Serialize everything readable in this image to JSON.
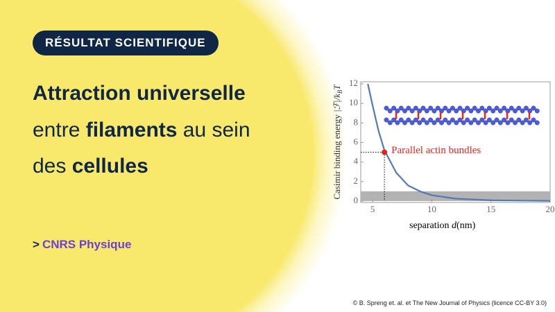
{
  "badge": "RÉSULTAT SCIENTIFIQUE",
  "headline": [
    [
      "Attraction universelle"
    ],
    [
      "entre",
      "filaments",
      "au sein"
    ],
    [
      "des",
      "cellules"
    ]
  ],
  "link": {
    "prefix": ">",
    "text": "CNRS Physique"
  },
  "credit": "© B. Spreng et. al. et The New Journal of Physics (licence CC-BY 3.0)",
  "chart_data": {
    "type": "line",
    "x_label": {
      "text": "separation",
      "symbol": "d",
      "unit": "(nm)"
    },
    "y_label": {
      "text": "Casimir binding energy",
      "math": "|ℱ|/k",
      "sub": "B",
      "tail": "T"
    },
    "x": [
      4.6,
      5,
      5.5,
      6,
      7,
      8,
      9,
      10,
      12,
      15,
      20
    ],
    "series": [
      {
        "color": "#5279b5",
        "values": [
          12,
          9.8,
          7.2,
          5.2,
          2.9,
          1.6,
          1.0,
          0.6,
          0.25,
          0.08,
          0.02
        ]
      }
    ],
    "xlim": [
      4,
      20
    ],
    "ylim": [
      0,
      12
    ],
    "xticks": [
      5,
      10,
      15,
      20
    ],
    "yticks": [
      0,
      2,
      4,
      6,
      8,
      10,
      12
    ],
    "shaded_band": [
      0,
      1
    ],
    "highlight": {
      "x": 6,
      "y": 5,
      "label": "Parallel actin bundles",
      "color": "#e0261f"
    }
  }
}
